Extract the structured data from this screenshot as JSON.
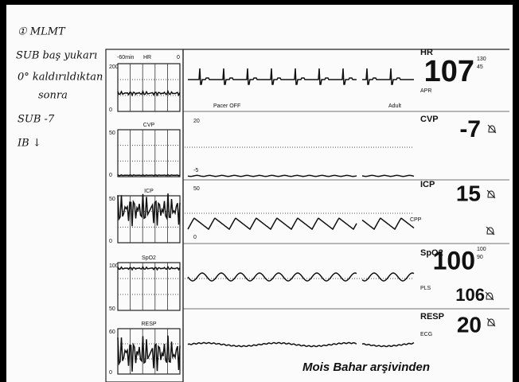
{
  "notes": [
    "① MLMT",
    "SUB baş yukarı",
    "0° kaldırıldıktan",
    "sonra",
    "SUB -7",
    "IB ↓"
  ],
  "trend_header": {
    "span": "-60min",
    "end": "0"
  },
  "trends": [
    {
      "label": "HR",
      "top": "200",
      "bottom": "0"
    },
    {
      "label": "CVP",
      "top": "50",
      "bottom": "0"
    },
    {
      "label": "ICP",
      "top": "50",
      "bottom": "0"
    },
    {
      "label": "SpO2",
      "top": "100",
      "bottom": "50"
    },
    {
      "label": "RESP",
      "top": "60",
      "bottom": "0"
    }
  ],
  "waves": {
    "pacer": "Pacer OFF",
    "mode": "Adult",
    "cvp_top": "20",
    "cvp_bottom": "-5",
    "icp_top": "50",
    "icp_bottom": "0"
  },
  "params": {
    "hr": {
      "label": "HR",
      "value": "107",
      "high": "130",
      "low": "45",
      "sub": "APR"
    },
    "cvp": {
      "label": "CVP",
      "value": "-7"
    },
    "icp": {
      "label": "ICP",
      "value": "15",
      "sub": "CPP"
    },
    "spo2": {
      "label": "SpO2",
      "value": "100",
      "high": "100",
      "low": "90",
      "sub": "PLS",
      "pulse": "106"
    },
    "resp": {
      "label": "RESP",
      "value": "20",
      "sub": "ECG"
    }
  },
  "watermark": "Mois Bahar arşivinden"
}
